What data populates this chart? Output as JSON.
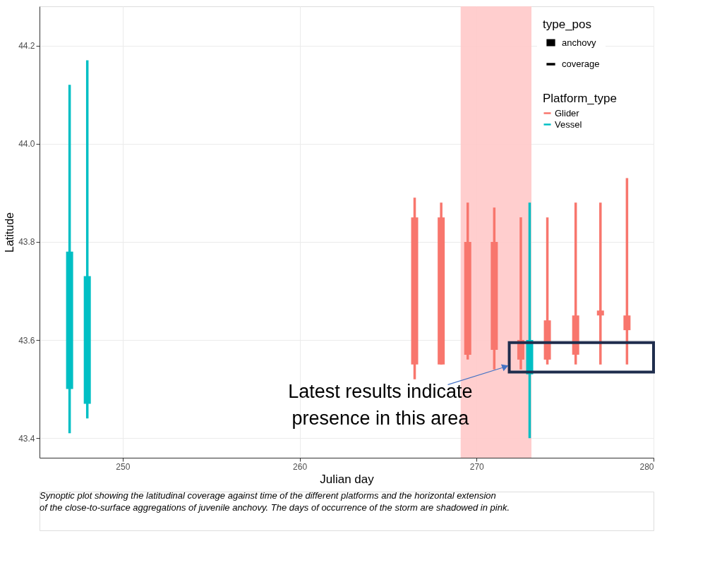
{
  "chart_data": {
    "type": "bar",
    "xlabel": "Julian day",
    "ylabel": "Latitude",
    "legend_title": [
      "type_pos",
      "Platform_type"
    ],
    "xlim": [
      245.3,
      280
    ],
    "xticks": [
      250,
      260,
      270,
      280
    ],
    "ylim": [
      43.36,
      44.28
    ],
    "yticks": [
      43.4,
      43.6,
      43.8,
      {
        "value": 44,
        "label": "44.0"
      },
      44.2
    ],
    "grid": true,
    "legend": "top right",
    "bands": [
      {
        "axis": "x",
        "from": 269.1,
        "to": 273.1,
        "color": "#ffc9c9"
      }
    ],
    "series": [
      {
        "name": "Glider",
        "color": "#f8766d",
        "x": [
          266.5,
          268,
          269.5,
          271,
          272.5,
          274,
          275.6,
          277,
          278.5
        ],
        "base": [
          43.55,
          43.55,
          43.57,
          43.58,
          43.56,
          43.56,
          43.57,
          43.65,
          43.62
        ],
        "values": [
          0.3,
          0.3,
          0.23,
          0.22,
          0.04,
          0.08,
          0.08,
          0.01,
          0.03
        ],
        "errors": [
          [
            43.52,
            43.89
          ],
          [
            43.55,
            43.88
          ],
          [
            43.56,
            43.88
          ],
          [
            43.54,
            43.87
          ],
          [
            43.54,
            43.85
          ],
          [
            43.55,
            43.85
          ],
          [
            43.55,
            43.88
          ],
          [
            43.55,
            43.88
          ],
          [
            43.55,
            43.93
          ]
        ]
      },
      {
        "name": "Vessel",
        "color": "#00bfc4",
        "x": [
          247,
          248,
          273
        ],
        "base": [
          43.5,
          43.47,
          43.53
        ],
        "values": [
          0.28,
          0.26,
          0.07
        ],
        "errors": [
          [
            43.41,
            44.12
          ],
          [
            43.44,
            44.17
          ],
          [
            43.4,
            43.88
          ]
        ]
      }
    ],
    "annotations": [
      "anchovy",
      "coverage",
      "Latest results indicate presence in this area",
      "Synoptic plot showing the latitudinal coverage against time of the different platforms and the horizontal extension of the close-to-surface aggregations of juvenile anchovy. The days of occurrence of the storm are shadowed in pink."
    ]
  }
}
